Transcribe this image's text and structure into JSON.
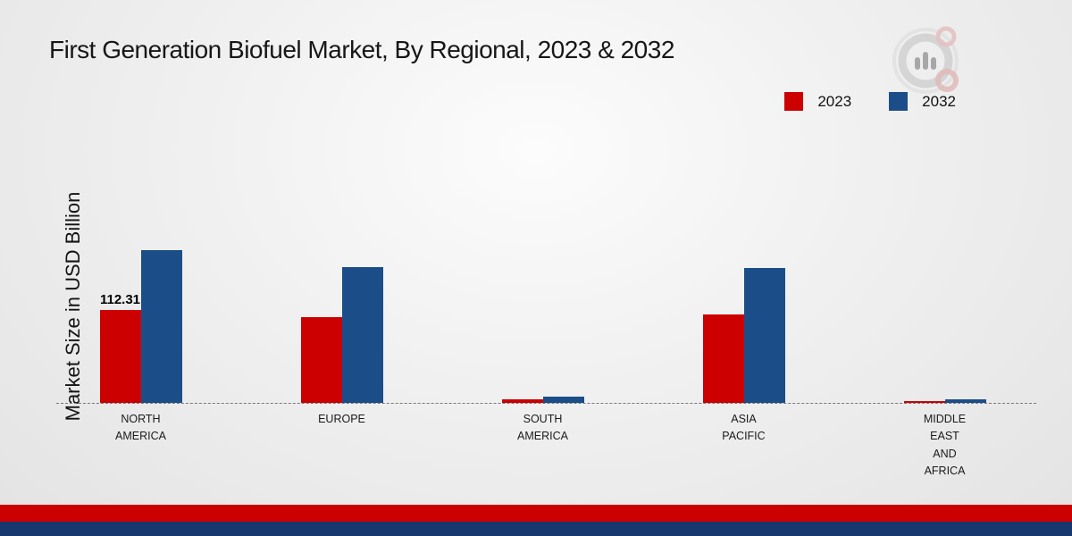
{
  "title": "First Generation Biofuel Market, By Regional, 2023 & 2032",
  "ylabel": "Market Size in USD Billion",
  "legend": {
    "items": [
      {
        "label": "2023",
        "color": "#cc0000"
      },
      {
        "label": "2032",
        "color": "#1b4e89"
      }
    ]
  },
  "footer": {
    "red_band_color": "#cc0000",
    "blue_band_color": "#16386e"
  },
  "chart_data": {
    "type": "bar",
    "title": "First Generation Biofuel Market, By Regional, 2023 & 2032",
    "ylabel": "Market Size in USD Billion",
    "categories": [
      "NORTH AMERICA",
      "EUROPE",
      "SOUTH AMERICA",
      "ASIA PACIFIC",
      "MIDDLE EAST AND AFRICA"
    ],
    "categories_display": [
      "NORTH\nAMERICA",
      "EUROPE",
      "SOUTH\nAMERICA",
      "ASIA\nPACIFIC",
      "MIDDLE\nEAST\nAND\nAFRICA"
    ],
    "series": [
      {
        "name": "2023",
        "color": "#cc0000",
        "values": [
          112.31,
          104,
          4.5,
          107,
          2.2
        ]
      },
      {
        "name": "2032",
        "color": "#1b4e89",
        "values": [
          185,
          164,
          7.5,
          163,
          4.2
        ]
      }
    ],
    "data_labels": [
      {
        "series": "2023",
        "category": "NORTH AMERICA",
        "text": "112.31"
      }
    ],
    "ylim": [
      0,
      200
    ],
    "grid": false,
    "legend_position": "top-right",
    "baseline_style": "dashed"
  }
}
